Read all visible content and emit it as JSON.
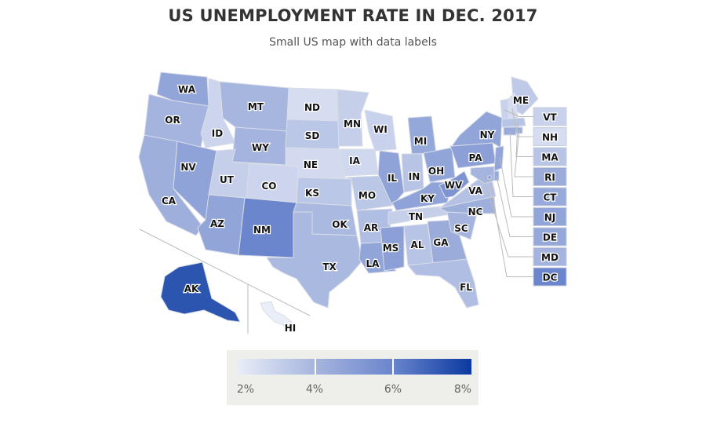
{
  "chart_data": {
    "type": "choropleth-map",
    "title": "US UNEMPLOYMENT RATE IN DEC. 2017",
    "subtitle": "Small US map with data labels",
    "unit": "%",
    "color_axis": {
      "min": 2,
      "max": 8,
      "ticks": [
        "2%",
        "4%",
        "6%",
        "8%"
      ],
      "colors": [
        "#eaeef8",
        "#a7b6df",
        "#6c86cd",
        "#0a3aa1"
      ]
    },
    "states": [
      {
        "code": "WA",
        "value": 4.7
      },
      {
        "code": "OR",
        "value": 4.1
      },
      {
        "code": "CA",
        "value": 4.3
      },
      {
        "code": "NV",
        "value": 4.8
      },
      {
        "code": "ID",
        "value": 2.9
      },
      {
        "code": "MT",
        "value": 4.0
      },
      {
        "code": "WY",
        "value": 4.1
      },
      {
        "code": "UT",
        "value": 3.1
      },
      {
        "code": "CO",
        "value": 2.9
      },
      {
        "code": "AZ",
        "value": 4.7
      },
      {
        "code": "NM",
        "value": 6.0
      },
      {
        "code": "ND",
        "value": 2.6
      },
      {
        "code": "SD",
        "value": 3.4
      },
      {
        "code": "NE",
        "value": 2.7
      },
      {
        "code": "KS",
        "value": 3.4
      },
      {
        "code": "OK",
        "value": 3.9
      },
      {
        "code": "TX",
        "value": 3.9
      },
      {
        "code": "MN",
        "value": 3.1
      },
      {
        "code": "IA",
        "value": 2.8
      },
      {
        "code": "MO",
        "value": 3.4
      },
      {
        "code": "AR",
        "value": 3.7
      },
      {
        "code": "LA",
        "value": 4.7
      },
      {
        "code": "WI",
        "value": 3.0
      },
      {
        "code": "IL",
        "value": 4.8
      },
      {
        "code": "IN",
        "value": 3.5
      },
      {
        "code": "MI",
        "value": 4.6
      },
      {
        "code": "OH",
        "value": 4.7
      },
      {
        "code": "KY",
        "value": 4.8
      },
      {
        "code": "TN",
        "value": 3.1
      },
      {
        "code": "MS",
        "value": 4.9
      },
      {
        "code": "AL",
        "value": 3.5
      },
      {
        "code": "GA",
        "value": 4.4
      },
      {
        "code": "FL",
        "value": 3.7
      },
      {
        "code": "SC",
        "value": 4.1
      },
      {
        "code": "NC",
        "value": 4.3
      },
      {
        "code": "VA",
        "value": 3.6
      },
      {
        "code": "WV",
        "value": 5.4
      },
      {
        "code": "PA",
        "value": 4.9
      },
      {
        "code": "NY",
        "value": 4.7
      },
      {
        "code": "ME",
        "value": 3.3
      },
      {
        "code": "VT",
        "value": 3.0
      },
      {
        "code": "NH",
        "value": 2.6
      },
      {
        "code": "MA",
        "value": 3.5
      },
      {
        "code": "RI",
        "value": 4.4
      },
      {
        "code": "CT",
        "value": 4.5
      },
      {
        "code": "NJ",
        "value": 4.7
      },
      {
        "code": "DE",
        "value": 4.6
      },
      {
        "code": "MD",
        "value": 4.1
      },
      {
        "code": "DC",
        "value": 6.0
      },
      {
        "code": "AK",
        "value": 7.3
      },
      {
        "code": "HI",
        "value": 2.0
      }
    ]
  }
}
